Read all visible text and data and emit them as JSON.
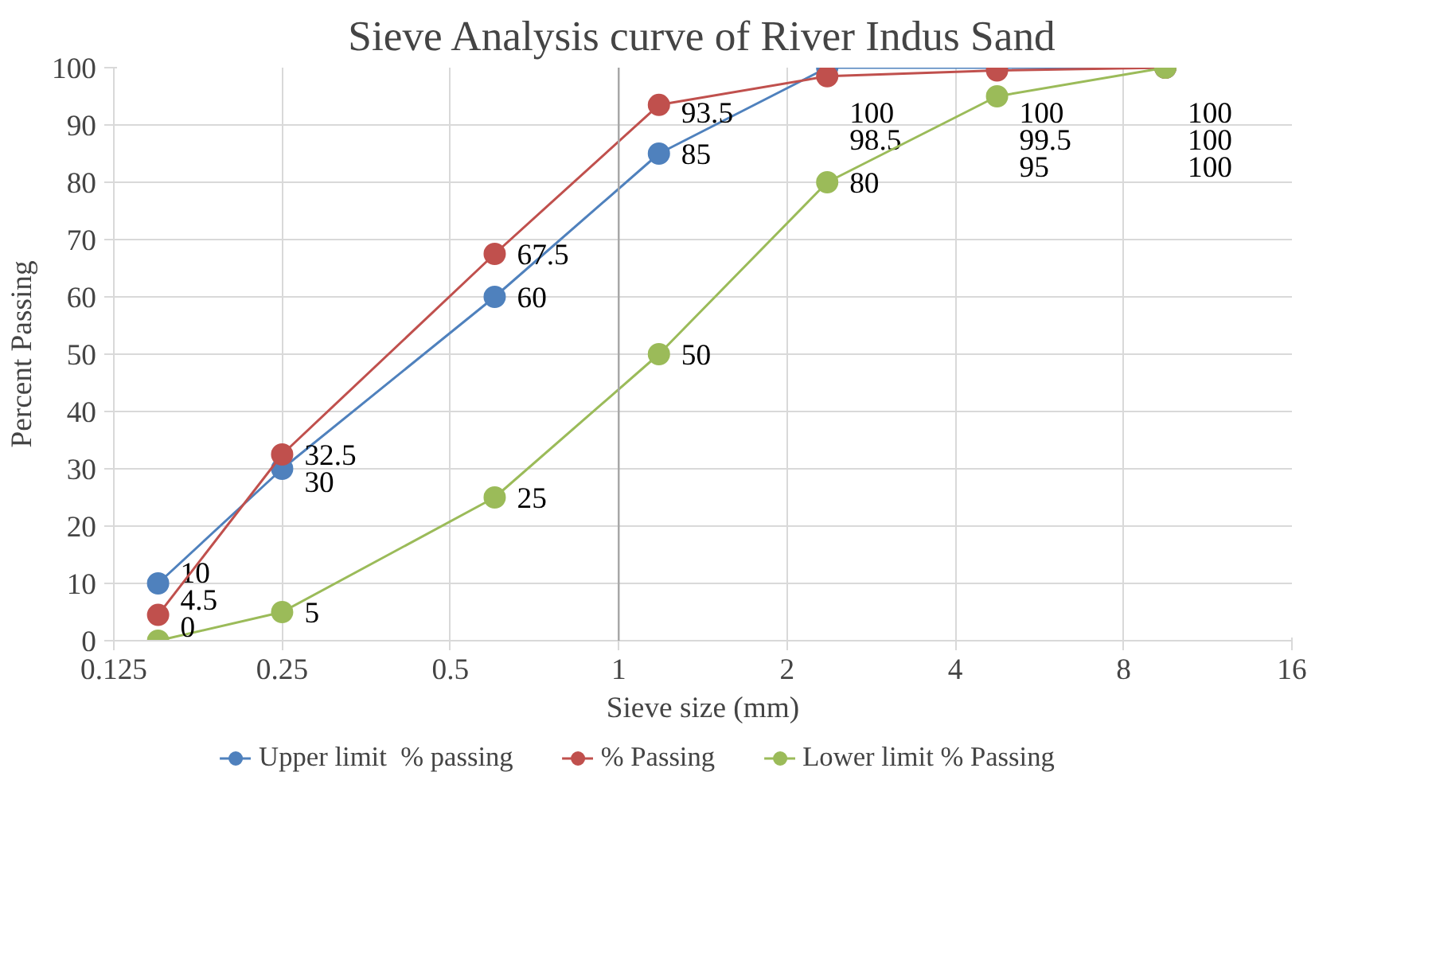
{
  "chart_data": {
    "type": "line",
    "title": "Sieve Analysis curve of River Indus Sand",
    "xlabel": "Sieve size (mm)",
    "ylabel": "Percent Passing",
    "x": [
      0.15,
      0.25,
      0.6,
      1.18,
      2.36,
      4.75,
      9.5
    ],
    "series": [
      {
        "name": "Upper limit  % passing",
        "color": "#4f81bd",
        "values": [
          10,
          30,
          60,
          85,
          100,
          100,
          100
        ]
      },
      {
        "name": "% Passing",
        "color": "#c0504d",
        "values": [
          4.5,
          32.5,
          67.5,
          93.5,
          98.5,
          99.5,
          100
        ]
      },
      {
        "name": "Lower limit % Passing",
        "color": "#9bbb59",
        "values": [
          0,
          5,
          25,
          50,
          80,
          95,
          100
        ]
      }
    ],
    "log": "x",
    "xlim": [
      0.125,
      16
    ],
    "xticks": [
      0.125,
      0.25,
      0.5,
      1,
      2,
      4,
      8,
      16
    ],
    "ylim": [
      0,
      100
    ],
    "yticks": [
      0,
      10,
      20,
      30,
      40,
      50,
      60,
      70,
      80,
      90,
      100
    ],
    "grid": true,
    "legend": "bottom",
    "marker": "circle",
    "line_style": "solid",
    "data_labels": true,
    "ref_lines": [
      {
        "axis": "x",
        "value": 1,
        "label": null,
        "color": "#a6a6a6"
      }
    ]
  }
}
